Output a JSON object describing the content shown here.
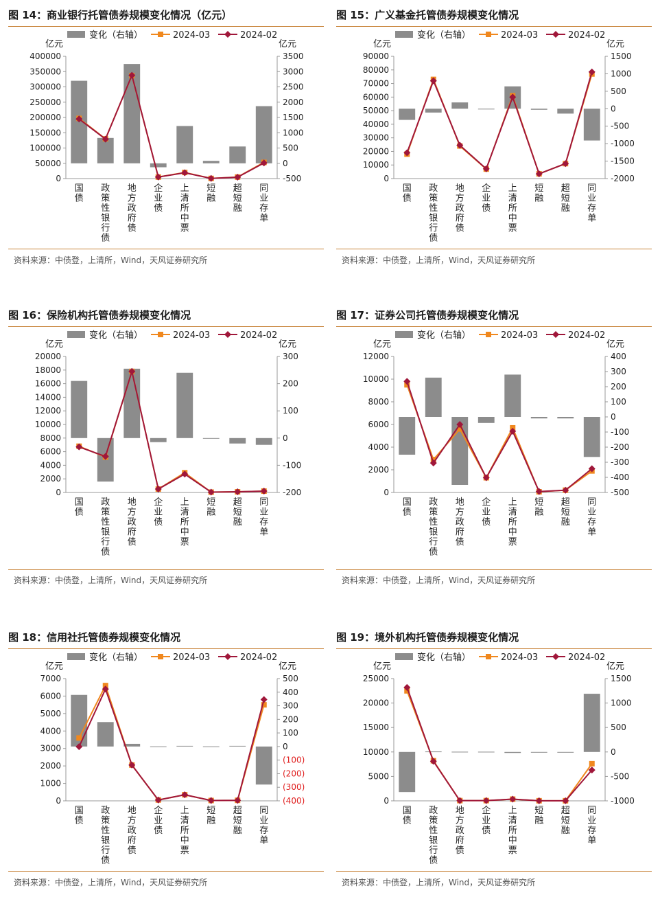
{
  "source_label": "资料来源：中债登，上清所，Wind，天风证券研究所",
  "legend": {
    "bar": "变化（右轴）",
    "s1": "2024-03",
    "s2": "2024-02"
  },
  "unit": "亿元",
  "colors": {
    "bar": "#8c8c8c",
    "s1": "#f0881e",
    "s2": "#a0173a",
    "rule": "#c8843a",
    "neg_tick": "#e02020"
  },
  "charts": [
    {
      "id": "fig14",
      "title": "图 14：商业银行托管债券规模变化情况（亿元）",
      "chart_data": {
        "type": "bar+line",
        "categories": [
          "国债",
          "政策性银行债",
          "地方政府债",
          "企业债",
          "上清所中票",
          "短融",
          "超短融",
          "同业存单"
        ],
        "left_ticks": [
          "400000",
          "350000",
          "300000",
          "250000",
          "200000",
          "150000",
          "100000",
          "50000",
          "0"
        ],
        "right_ticks": [
          "3500",
          "3000",
          "2500",
          "2000",
          "1500",
          "1000",
          "500",
          "0",
          "-500"
        ],
        "ylim_left": [
          0,
          400000
        ],
        "ylim_right": [
          -500,
          3500
        ],
        "bars": [
          2700,
          830,
          3250,
          -130,
          1220,
          80,
          550,
          1870
        ],
        "series": [
          {
            "name": "2024-03",
            "values": [
              197000,
              130000,
              337000,
              5000,
              20000,
              500,
              5000,
              53000
            ]
          },
          {
            "name": "2024-02",
            "values": [
              195000,
              129000,
              338000,
              5000,
              19000,
              500,
              4500,
              51000
            ]
          }
        ]
      }
    },
    {
      "id": "fig15",
      "title": "图 15：广义基金托管债券规模变化情况",
      "chart_data": {
        "type": "bar+line",
        "categories": [
          "国债",
          "政策性银行债",
          "地方政府债",
          "企业债",
          "上清所中票",
          "短融",
          "超短融",
          "同业存单"
        ],
        "left_ticks": [
          "90000",
          "80000",
          "70000",
          "60000",
          "50000",
          "40000",
          "30000",
          "20000",
          "10000",
          "0"
        ],
        "right_ticks": [
          "1500",
          "1000",
          "500",
          "0",
          "-500",
          "-1000",
          "-1500",
          "-2000"
        ],
        "ylim_left": [
          0,
          90000
        ],
        "ylim_right": [
          -2000,
          1500
        ],
        "bars": [
          -320,
          -110,
          180,
          -20,
          640,
          -30,
          -140,
          -910
        ],
        "series": [
          {
            "name": "2024-03",
            "values": [
              18000,
              73000,
              24000,
              7000,
              61000,
              3500,
              11000,
              77000
            ]
          },
          {
            "name": "2024-02",
            "values": [
              19000,
              72000,
              24500,
              7200,
              60000,
              3500,
              11000,
              78500
            ]
          }
        ]
      }
    },
    {
      "id": "fig16",
      "title": "图 16：保险机构托管债券规模变化情况",
      "chart_data": {
        "type": "bar+line",
        "categories": [
          "国债",
          "政策性银行债",
          "地方政府债",
          "企业债",
          "上清所中票",
          "短融",
          "超短融",
          "同业存单"
        ],
        "left_ticks": [
          "20000",
          "18000",
          "16000",
          "14000",
          "12000",
          "10000",
          "8000",
          "6000",
          "4000",
          "2000",
          "0"
        ],
        "right_ticks": [
          "300",
          "200",
          "100",
          "0",
          "-100",
          "-200"
        ],
        "ylim_left": [
          0,
          20000
        ],
        "ylim_right": [
          -200,
          300
        ],
        "bars": [
          210,
          -160,
          255,
          -15,
          240,
          0,
          -20,
          -25
        ],
        "series": [
          {
            "name": "2024-03",
            "values": [
              6800,
              5200,
              17800,
              500,
              2900,
              50,
              100,
              200
            ]
          },
          {
            "name": "2024-02",
            "values": [
              6700,
              5300,
              17800,
              500,
              2700,
              50,
              100,
              200
            ]
          }
        ]
      }
    },
    {
      "id": "fig17",
      "title": "图 17：证券公司托管债券规模变化情况",
      "chart_data": {
        "type": "bar+line",
        "categories": [
          "国债",
          "政策性银行债",
          "地方政府债",
          "企业债",
          "上清所中票",
          "短融",
          "超短融",
          "同业存单"
        ],
        "left_ticks": [
          "12000",
          "10000",
          "8000",
          "6000",
          "4000",
          "2000",
          "0"
        ],
        "right_ticks": [
          "400",
          "300",
          "200",
          "100",
          "0",
          "-100",
          "-200",
          "-300",
          "-400",
          "-500"
        ],
        "ylim_left": [
          0,
          12000
        ],
        "ylim_right": [
          -500,
          400
        ],
        "bars": [
          -250,
          260,
          -450,
          -40,
          280,
          -10,
          -10,
          -265
        ],
        "series": [
          {
            "name": "2024-03",
            "values": [
              9500,
              2900,
              5600,
              1300,
              5700,
              60,
              200,
              1900
            ]
          },
          {
            "name": "2024-02",
            "values": [
              9800,
              2600,
              6000,
              1300,
              5400,
              80,
              200,
              2100
            ]
          }
        ]
      }
    },
    {
      "id": "fig18",
      "title": "图 18：信用社托管债券规模变化情况",
      "chart_data": {
        "type": "bar+line",
        "categories": [
          "国债",
          "政策性银行债",
          "地方政府债",
          "企业债",
          "上清所中票",
          "短融",
          "超短融",
          "同业存单"
        ],
        "left_ticks": [
          "7000",
          "6000",
          "5000",
          "4000",
          "3000",
          "2000",
          "1000",
          "0"
        ],
        "right_ticks": [
          "500",
          "400",
          "300",
          "200",
          "100",
          "0",
          "(100)",
          "(200)",
          "(300)",
          "(400)"
        ],
        "ylim_left": [
          0,
          7000
        ],
        "ylim_right": [
          -400,
          500
        ],
        "bars": [
          380,
          180,
          20,
          1,
          5,
          1,
          5,
          -280
        ],
        "series": [
          {
            "name": "2024-03",
            "values": [
              3600,
              6600,
              2050,
              50,
              350,
              20,
              30,
              5500
            ]
          },
          {
            "name": "2024-02",
            "values": [
              3100,
              6400,
              2050,
              50,
              350,
              20,
              30,
              5800
            ]
          }
        ]
      }
    },
    {
      "id": "fig19",
      "title": "图 19：境外机构托管债券规模变化情况",
      "chart_data": {
        "type": "bar+line",
        "categories": [
          "国债",
          "政策性银行债",
          "地方政府债",
          "企业债",
          "上清所中票",
          "短融",
          "超短融",
          "同业存单"
        ],
        "left_ticks": [
          "25000",
          "20000",
          "15000",
          "10000",
          "5000",
          "0"
        ],
        "right_ticks": [
          "1500",
          "1000",
          "500",
          "0",
          "-500",
          "-1000"
        ],
        "ylim_left": [
          0,
          25000
        ],
        "ylim_right": [
          -1000,
          1500
        ],
        "bars": [
          -820,
          10,
          5,
          5,
          -20,
          0,
          0,
          1190
        ],
        "series": [
          {
            "name": "2024-03",
            "values": [
              22500,
              8200,
              50,
              50,
              350,
              20,
              20,
              7600
            ]
          },
          {
            "name": "2024-02",
            "values": [
              23200,
              8100,
              50,
              50,
              350,
              20,
              20,
              6300
            ]
          }
        ]
      }
    }
  ]
}
